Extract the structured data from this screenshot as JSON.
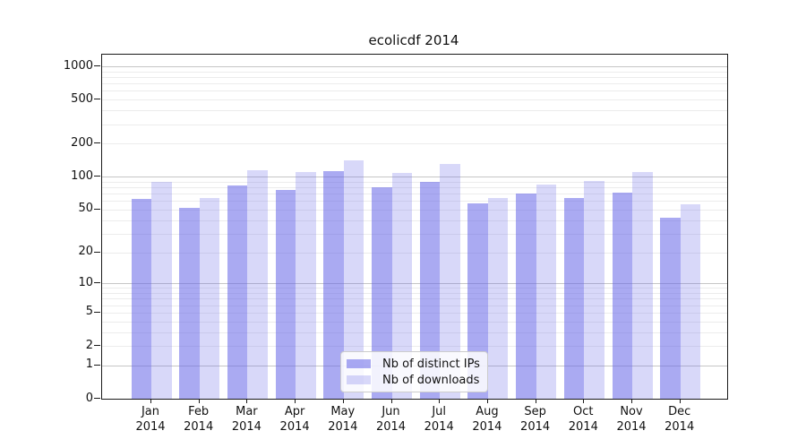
{
  "chart_data": {
    "type": "bar",
    "title": "ecolicdf 2014",
    "categories": [
      "Jan",
      "Feb",
      "Mar",
      "Apr",
      "May",
      "Jun",
      "Jul",
      "Aug",
      "Sep",
      "Oct",
      "Nov",
      "Dec"
    ],
    "x_year_label": "2014",
    "series": [
      {
        "name": "Nb of distinct IPs",
        "values": [
          63,
          52,
          83,
          75,
          112,
          80,
          90,
          57,
          70,
          64,
          72,
          42
        ],
        "color": "rgba(100,100,232,0.55)"
      },
      {
        "name": "Nb of downloads",
        "values": [
          90,
          64,
          114,
          110,
          141,
          108,
          131,
          64,
          85,
          91,
          110,
          56
        ],
        "color": "rgba(100,100,232,0.25)"
      }
    ],
    "yticks": [
      0,
      1,
      2,
      5,
      10,
      20,
      50,
      100,
      200,
      500,
      1000
    ],
    "scale": "log1p",
    "ylim": [
      0,
      1000
    ],
    "grid": true,
    "legend_position": "inside-bottom-center",
    "colors": {
      "grid_minor": "#ececec",
      "grid_major": "#c6c6c6",
      "axis": "#1a1a1a",
      "text": "#111111",
      "legend_border": "#cccccc",
      "legend_bg": "rgba(255,255,255,0.85)"
    }
  }
}
